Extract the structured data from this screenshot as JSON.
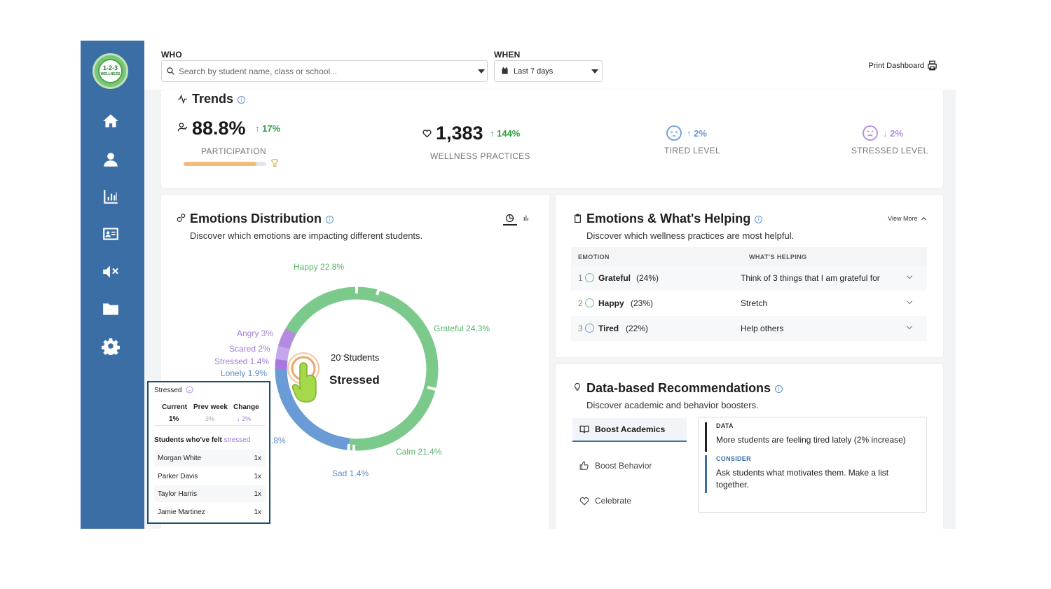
{
  "topbar": {
    "who_label": "WHO",
    "search_placeholder": "Search by student name, class or school...",
    "when_label": "WHEN",
    "when_value": "Last 7 days",
    "print_label": "Print Dashboard"
  },
  "sidebar": {
    "logo_text": "1-2-3",
    "logo_sub": "WELLNESS",
    "items": [
      "home-icon",
      "user-icon",
      "bar-chart-icon",
      "id-card-icon",
      "volume-mute-icon",
      "folder-icon",
      "gear-icon"
    ]
  },
  "trends": {
    "title": "Trends",
    "participation": {
      "value": "88.8%",
      "change": "↑ 17%",
      "caption": "PARTICIPATION",
      "progress": 0.88
    },
    "practices": {
      "value": "1,383",
      "change": "↑ 144%",
      "caption": "WELLNESS PRACTICES"
    },
    "tired": {
      "change": "↑ 2%",
      "caption": "TIRED LEVEL"
    },
    "stressed": {
      "change": "↓ 2%",
      "caption": "STRESSED LEVEL"
    }
  },
  "emotions": {
    "title": "Emotions Distribution",
    "subtitle": "Discover which emotions are impacting different students.",
    "center_count": "20 Students",
    "center_label": "Stressed",
    "labels": {
      "happy": "Happy 22.8%",
      "grateful": "Grateful 24.3%",
      "angry": "Angry 3%",
      "scared": "Scared 2%",
      "stressed": "Stressed 1.4%",
      "lonely": "Lonely 1.9%",
      "calm": "Calm 21.4%",
      "sad": "Sad 1.4%",
      "partial": ".8%"
    }
  },
  "tooltip": {
    "title": "Stressed",
    "col_current": "Current",
    "col_prev": "Prev week",
    "col_change": "Change",
    "current": "1%",
    "prev": "3%",
    "change": "↓ 2%",
    "felt_label": "Students who've felt",
    "felt_emotion": "stressed",
    "students": [
      {
        "name": "Morgan White",
        "count": "1x"
      },
      {
        "name": "Parker Davis",
        "count": "1x"
      },
      {
        "name": "Taylor Harris",
        "count": "1x"
      },
      {
        "name": "Jamie Martinez",
        "count": "1x"
      }
    ]
  },
  "helping": {
    "title": "Emotions & What's Helping",
    "view_more": "View More",
    "subtitle": "Discover which wellness practices are most helpful.",
    "col_emotion": "EMOTION",
    "col_helping": "WHAT'S HELPING",
    "rows": [
      {
        "rank": "1",
        "emotion": "Grateful",
        "pct": "(24%)",
        "helping": "Think of 3 things that I am grateful for"
      },
      {
        "rank": "2",
        "emotion": "Happy",
        "pct": "(23%)",
        "helping": "Stretch"
      },
      {
        "rank": "3",
        "emotion": "Tired",
        "pct": "(22%)",
        "helping": "Help others"
      }
    ]
  },
  "recommendations": {
    "title": "Data-based Recommendations",
    "subtitle": "Discover academic and behavior boosters.",
    "tabs": [
      "Boost Academics",
      "Boost Behavior",
      "Celebrate"
    ],
    "data_label": "DATA",
    "data_text": "More students are feeling tired lately (2% increase)",
    "consider_label": "CONSIDER",
    "consider_text": "Ask students what motivates them. Make a list together."
  },
  "colors": {
    "brand": "#3a6ea5",
    "green": "#6cc28d",
    "purple": "#b48be0",
    "blue": "#6a9bd6",
    "positive": "#2f9e44"
  }
}
